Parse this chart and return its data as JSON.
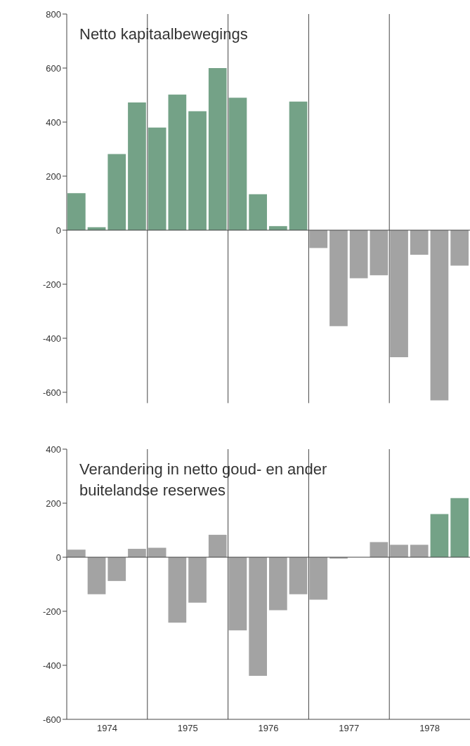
{
  "chart_data": [
    {
      "type": "bar",
      "title": "Netto kapitaalbewegings",
      "x": [
        1974.125,
        1974.375,
        1974.625,
        1974.875,
        1975.125,
        1975.375,
        1975.625,
        1975.875,
        1976.125,
        1976.375,
        1976.625,
        1976.875,
        1977.125,
        1977.375,
        1977.625,
        1977.875,
        1978.125,
        1978.375,
        1978.625,
        1978.875
      ],
      "values": [
        137,
        11,
        282,
        473,
        380,
        502,
        440,
        600,
        490,
        133,
        15,
        476,
        -66,
        -355,
        -178,
        -167,
        -470,
        -91,
        -630,
        -131
      ],
      "colors": [
        "#74a287",
        "#74a287",
        "#74a287",
        "#74a287",
        "#74a287",
        "#74a287",
        "#74a287",
        "#74a287",
        "#74a287",
        "#74a287",
        "#74a287",
        "#74a287",
        "#a3a3a3",
        "#a3a3a3",
        "#a3a3a3",
        "#a3a3a3",
        "#a3a3a3",
        "#a3a3a3",
        "#a3a3a3",
        "#a3a3a3"
      ],
      "xlim": [
        1974,
        1979
      ],
      "ylim": [
        -640,
        800
      ],
      "yticks": [
        -600,
        -400,
        -200,
        0,
        200,
        400,
        600,
        800
      ],
      "tick_labels": "y",
      "ref_lines": [
        {
          "axis": "y",
          "value": 0
        },
        {
          "axis": "x",
          "value": 1975
        },
        {
          "axis": "x",
          "value": 1976
        },
        {
          "axis": "x",
          "value": 1977
        },
        {
          "axis": "x",
          "value": 1978
        }
      ]
    },
    {
      "type": "bar",
      "title": "Verandering in netto goud- en ander buitelandse reserwes",
      "x": [
        1974.125,
        1974.375,
        1974.625,
        1974.875,
        1975.125,
        1975.375,
        1975.625,
        1975.875,
        1976.125,
        1976.375,
        1976.625,
        1976.875,
        1977.125,
        1977.375,
        1977.625,
        1977.875,
        1978.125,
        1978.375,
        1978.625,
        1978.875
      ],
      "values": [
        28,
        -137,
        -88,
        31,
        35,
        -242,
        -168,
        83,
        -271,
        -439,
        -196,
        -137,
        -157,
        -5,
        0,
        56,
        46,
        46,
        160,
        219
      ],
      "colors": [
        "#a3a3a3",
        "#a3a3a3",
        "#a3a3a3",
        "#a3a3a3",
        "#a3a3a3",
        "#a3a3a3",
        "#a3a3a3",
        "#a3a3a3",
        "#a3a3a3",
        "#a3a3a3",
        "#a3a3a3",
        "#a3a3a3",
        "#a3a3a3",
        "#a3a3a3",
        "#a3a3a3",
        "#a3a3a3",
        "#a3a3a3",
        "#a3a3a3",
        "#74a287",
        "#74a287"
      ],
      "xlim": [
        1974,
        1979
      ],
      "xticks": [
        {
          "value": 1974.5,
          "label": "1974"
        },
        {
          "value": 1975.5,
          "label": "1975"
        },
        {
          "value": 1976.5,
          "label": "1976"
        },
        {
          "value": 1977.5,
          "label": "1977"
        },
        {
          "value": 1978.5,
          "label": "1978"
        }
      ],
      "ylim": [
        -600,
        400
      ],
      "yticks": [
        -600,
        -400,
        -200,
        0,
        200,
        400
      ],
      "ref_lines": [
        {
          "axis": "y",
          "value": 0
        },
        {
          "axis": "x",
          "value": 1975
        },
        {
          "axis": "x",
          "value": 1976
        },
        {
          "axis": "x",
          "value": 1977
        },
        {
          "axis": "x",
          "value": 1978
        }
      ]
    }
  ]
}
